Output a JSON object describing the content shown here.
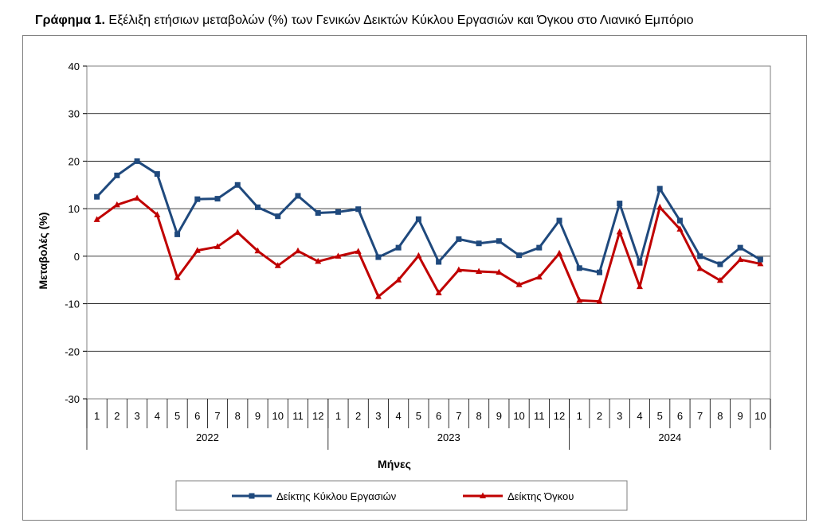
{
  "title_bold": "Γράφημα 1.",
  "title_rest": " Εξέλιξη ετήσιων μεταβολών (%) των Γενικών Δεικτών Κύκλου Εργασιών και Όγκου στο Λιανικό Εμπόριο",
  "chart_data": {
    "type": "line",
    "xlabel": "Μήνες",
    "ylabel": "Μεταβολές  (%)",
    "ylim": [
      -30,
      40
    ],
    "yticks": [
      -30,
      -20,
      -10,
      0,
      10,
      20,
      30,
      40
    ],
    "grid": true,
    "legend_position": "bottom",
    "month_labels": [
      "1",
      "2",
      "3",
      "4",
      "5",
      "6",
      "7",
      "8",
      "9",
      "10",
      "11",
      "12",
      "1",
      "2",
      "3",
      "4",
      "5",
      "6",
      "7",
      "8",
      "9",
      "10",
      "11",
      "12",
      "1",
      "2",
      "3",
      "4",
      "5",
      "6",
      "7",
      "8",
      "9",
      "10"
    ],
    "years": [
      {
        "label": "2022",
        "months": 12
      },
      {
        "label": "2023",
        "months": 12
      },
      {
        "label": "2024",
        "months": 10
      }
    ],
    "series": [
      {
        "name": "Δείκτης Κύκλου Εργασιών",
        "color": "#1f497d",
        "marker": "square",
        "values": [
          12.5,
          17.0,
          20.0,
          17.3,
          4.6,
          12.0,
          12.1,
          15.0,
          10.3,
          8.4,
          12.7,
          9.1,
          9.3,
          9.9,
          -0.2,
          1.8,
          7.8,
          -1.2,
          3.6,
          2.7,
          3.2,
          0.2,
          1.8,
          7.5,
          -2.5,
          -3.4,
          11.1,
          -1.4,
          14.2,
          7.5,
          0.0,
          -1.7,
          1.8,
          -0.7
        ]
      },
      {
        "name": "Δείκτης Όγκου",
        "color": "#c00000",
        "marker": "triangle",
        "values": [
          7.7,
          10.8,
          12.2,
          8.7,
          -4.5,
          1.2,
          2.0,
          5.0,
          1.1,
          -2.0,
          1.1,
          -1.1,
          0.0,
          1.0,
          -8.5,
          -5.0,
          0.1,
          -7.7,
          -2.9,
          -3.2,
          -3.4,
          -6.0,
          -4.4,
          0.6,
          -9.3,
          -9.5,
          5.1,
          -6.4,
          10.3,
          5.7,
          -2.6,
          -5.1,
          -0.7,
          -1.6
        ]
      }
    ]
  }
}
